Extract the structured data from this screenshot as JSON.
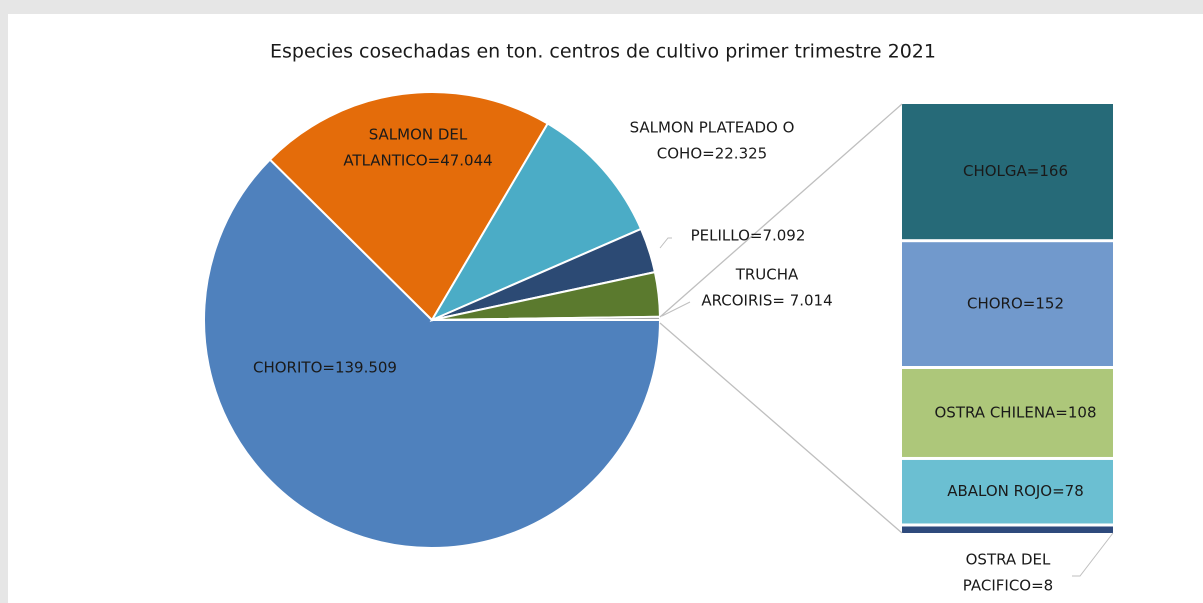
{
  "chart_data": {
    "type": "pie-of-bar",
    "title": "Especies cosechadas en ton. centros de cultivo primer trimestre 2021",
    "pie": {
      "labels": [
        [
          "CHORITO=139.509"
        ],
        [
          "SALMON DEL",
          "ATLANTICO=47.044"
        ],
        [
          "SALMON PLATEADO O",
          "COHO=22.325"
        ],
        [
          "PELILLO=7.092"
        ],
        [
          "TRUCHA",
          "ARCOIRIS= 7.014"
        ]
      ],
      "values": [
        139509,
        47044,
        22325,
        7092,
        7014
      ],
      "colors": [
        "#4f81bd",
        "#e46c0a",
        "#4bacc6",
        "#2c4a74",
        "#5b7a2e"
      ]
    },
    "bar": {
      "labels": [
        [
          "CHOLGA=166"
        ],
        [
          "CHORO=152"
        ],
        [
          "OSTRA CHILENA=108"
        ],
        [
          "ABALON ROJO=78"
        ],
        [
          "OSTRA DEL",
          "PACIFICO=8"
        ]
      ],
      "values": [
        166,
        152,
        108,
        78,
        8
      ],
      "colors": [
        "#266a78",
        "#7199cc",
        "#adc77a",
        "#6bbfd2",
        "#2e4a7c"
      ]
    }
  }
}
